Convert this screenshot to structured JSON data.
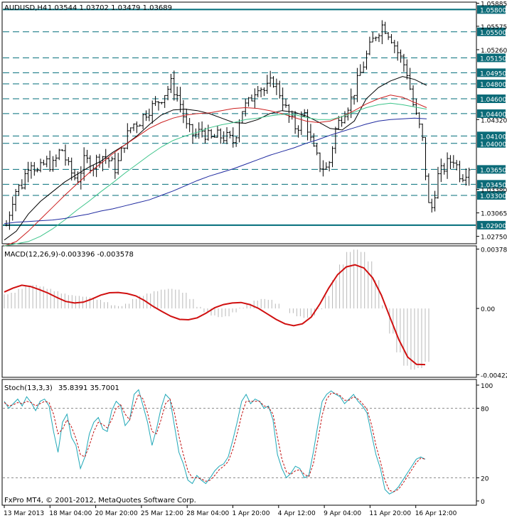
{
  "window": {
    "symbol_label": "AUDUSD,H4",
    "ohlc_label": "1.03544 1.03702 1.03479 1.03689"
  },
  "colors": {
    "price_bars": "#000000",
    "level_line": "#006d7a",
    "price_tag_bg": "#0b6b78",
    "ma_fast": "#000000",
    "ma_mid": "#3cc48a",
    "ma_slow": "#cc1f1f",
    "ma_long": "#1f2aa0",
    "macd_hist": "#b8b8b8",
    "macd_signal": "#d01010",
    "stoch_main": "#20a8b8",
    "stoch_signal": "#c01010"
  },
  "footer": {
    "copyright": "FxPro MT4, © 2001-2012, MetaQuotes Software Corp."
  },
  "chart_data": [
    {
      "type": "line",
      "title": "AUDUSD,H4",
      "subtitle": "1.03544 1.03702 1.03479 1.03689",
      "chart_kind": "ohlc-bars",
      "ylim": [
        1.0266,
        1.0589
      ],
      "y_ticks": [
        "1.05885",
        "1.05575",
        "1.05260",
        "1.04320",
        "1.03380",
        "1.03065",
        "1.02750"
      ],
      "x_ticks": [
        "13 Mar 2013",
        "18 Mar 04:00",
        "20 Mar 20:00",
        "25 Mar 12:00",
        "28 Mar 04:00",
        "1 Apr 20:00",
        "4 Apr 12:00",
        "9 Apr 04:00",
        "11 Apr 20:00",
        "16 Apr 12:00"
      ],
      "horizontal_levels": [
        {
          "value": 1.058,
          "label": "1.05800",
          "solid": true
        },
        {
          "value": 1.055,
          "label": "1.05500"
        },
        {
          "value": 1.0515,
          "label": "1.05150"
        },
        {
          "value": 1.0495,
          "label": "1.04950"
        },
        {
          "value": 1.048,
          "label": "1.04800"
        },
        {
          "value": 1.046,
          "label": "1.04600"
        },
        {
          "value": 1.044,
          "label": "1.04400"
        },
        {
          "value": 1.041,
          "label": "1.04100"
        },
        {
          "value": 1.04,
          "label": "1.04000"
        },
        {
          "value": 1.0365,
          "label": "1.03650"
        },
        {
          "value": 1.0345,
          "label": "1.03450"
        },
        {
          "value": 1.033,
          "label": "1.03300"
        },
        {
          "value": 1.029,
          "label": "1.02900",
          "solid": true
        }
      ],
      "price_path": [
        1.029,
        1.0335,
        1.0345,
        1.038,
        1.036,
        1.0375,
        1.037,
        1.0395,
        1.0365,
        1.035,
        1.0378,
        1.037,
        1.0385,
        1.0378,
        1.0365,
        1.04,
        1.0425,
        1.043,
        1.0445,
        1.0452,
        1.0465,
        1.048,
        1.046,
        1.042,
        1.041,
        1.0418,
        1.0405,
        1.041,
        1.0408,
        1.0402,
        1.0445,
        1.0455,
        1.048,
        1.047,
        1.0485,
        1.0465,
        1.0435,
        1.042,
        1.044,
        1.0395,
        1.037,
        1.0365,
        1.042,
        1.0442,
        1.046,
        1.049,
        1.052,
        1.0545,
        1.056,
        1.0545,
        1.052,
        1.05,
        1.0445,
        1.041,
        1.03,
        1.0355,
        1.037,
        1.038,
        1.0355,
        1.0369
      ],
      "series": [
        {
          "name": "MA",
          "values": [
            1.027,
            1.0282,
            1.0305,
            1.0322,
            1.0335,
            1.0348,
            1.0358,
            1.0368,
            1.0376,
            1.0388,
            1.0398,
            1.041,
            1.0425,
            1.0438,
            1.0445,
            1.0446,
            1.0444,
            1.044,
            1.0434,
            1.0428,
            1.0427,
            1.0432,
            1.044,
            1.0444,
            1.0442,
            1.0437,
            1.0429,
            1.042,
            1.0418,
            1.043,
            1.046,
            1.0475,
            1.0484,
            1.049,
            1.0486,
            1.0478
          ]
        },
        {
          "name": "MA",
          "values": [
            1.0262,
            1.0268,
            1.0282,
            1.0298,
            1.0314,
            1.033,
            1.0345,
            1.036,
            1.0373,
            1.0386,
            1.0398,
            1.0409,
            1.042,
            1.0428,
            1.0434,
            1.0438,
            1.044,
            1.0441,
            1.0444,
            1.0447,
            1.0448,
            1.0447,
            1.0444,
            1.044,
            1.0435,
            1.043,
            1.0428,
            1.043,
            1.0436,
            1.0444,
            1.0453,
            1.046,
            1.0465,
            1.0462,
            1.0455,
            1.0448
          ]
        },
        {
          "name": "MA",
          "values": [
            1.0262,
            1.0265,
            1.0268,
            1.0275,
            1.0285,
            1.0297,
            1.031,
            1.0322,
            1.0335,
            1.0347,
            1.036,
            1.0372,
            1.0384,
            1.0395,
            1.0404,
            1.041,
            1.0415,
            1.0421,
            1.0425,
            1.0428,
            1.0432,
            1.0434,
            1.0437,
            1.0439,
            1.0439,
            1.0435,
            1.0432,
            1.0432,
            1.0436,
            1.0442,
            1.0448,
            1.0452,
            1.0454,
            1.0452,
            1.0449,
            1.0446
          ]
        },
        {
          "name": "MA",
          "values": [
            1.0292,
            1.0294,
            1.0295,
            1.0296,
            1.0297,
            1.0299,
            1.0302,
            1.0305,
            1.0309,
            1.0312,
            1.0316,
            1.032,
            1.0324,
            1.033,
            1.0336,
            1.0343,
            1.035,
            1.0356,
            1.0361,
            1.0366,
            1.0372,
            1.0378,
            1.0384,
            1.0389,
            1.0394,
            1.04,
            1.0405,
            1.0411,
            1.0416,
            1.0421,
            1.0426,
            1.043,
            1.0432,
            1.0433,
            1.0434,
            1.0433
          ]
        }
      ]
    },
    {
      "type": "bar",
      "title": "MACD(12,26,9)",
      "subtitle": "-0.003396 -0.003578",
      "ylim": [
        -0.0043,
        0.0039
      ],
      "y_ticks": [
        "0.003784",
        "0.00",
        "-0.004224"
      ],
      "series": [
        {
          "name": "MACD histogram",
          "values": [
            0.0009,
            0.001,
            0.00125,
            0.00145,
            0.0015,
            0.0014,
            0.00125,
            0.0011,
            0.00095,
            0.00085,
            0.0008,
            0.00075,
            0.0007,
            0.00055,
            0.0004,
            0.0002,
            0.00015,
            0.0003,
            0.0006,
            0.0008,
            0.00095,
            0.0011,
            0.0012,
            0.00125,
            0.0012,
            0.001,
            0.0006,
            0.0001,
            -0.00025,
            -0.00045,
            -0.00055,
            -0.0005,
            -0.00025,
            5e-05,
            0.0003,
            0.0005,
            0.0006,
            0.00055,
            0.0003,
            0.0,
            -0.0003,
            -0.0005,
            -0.0006,
            -0.00045,
            -5e-05,
            0.0008,
            0.0018,
            0.0028,
            0.0036,
            0.00375,
            0.0036,
            0.003,
            0.0018,
            0.0002,
            -0.0016,
            -0.0028,
            -0.00365,
            -0.0039,
            -0.0038,
            -0.0034
          ]
        },
        {
          "name": "Signal",
          "values": [
            0.00105,
            0.0013,
            0.00148,
            0.0014,
            0.0012,
            0.00098,
            0.0007,
            0.00045,
            0.00035,
            0.0004,
            0.0006,
            0.00085,
            0.001,
            0.00102,
            0.00095,
            0.0008,
            0.0005,
            0.00012,
            -0.0002,
            -0.0005,
            -0.0007,
            -0.00072,
            -0.0006,
            -0.0003,
            5e-05,
            0.00025,
            0.00035,
            0.00038,
            0.00025,
            0.0,
            -0.00035,
            -0.0007,
            -0.00098,
            -0.0011,
            -0.00098,
            -0.00055,
            0.0003,
            0.0013,
            0.00215,
            0.00265,
            0.00278,
            0.00258,
            0.00195,
            0.00085,
            -0.0006,
            -0.002,
            -0.0031,
            -0.00356,
            -0.00358
          ]
        }
      ]
    },
    {
      "type": "line",
      "title": "Stoch(13,3,3)",
      "subtitle": "35.8391 35.7001",
      "ylim": [
        0,
        100
      ],
      "y_ticks": [
        "100",
        "80",
        "20",
        "0"
      ],
      "series": [
        {
          "name": "Stoch main",
          "values": [
            86,
            80,
            84,
            88,
            82,
            90,
            85,
            78,
            86,
            88,
            82,
            60,
            42,
            68,
            75,
            55,
            48,
            28,
            38,
            58,
            68,
            72,
            62,
            60,
            78,
            86,
            82,
            65,
            70,
            92,
            96,
            82,
            68,
            48,
            62,
            80,
            92,
            88,
            65,
            42,
            32,
            18,
            15,
            22,
            18,
            15,
            20,
            26,
            30,
            32,
            38,
            52,
            68,
            86,
            92,
            84,
            88,
            86,
            80,
            82,
            70,
            40,
            28,
            20,
            24,
            30,
            28,
            20,
            22,
            42,
            65,
            86,
            92,
            95,
            92,
            90,
            84,
            88,
            92,
            86,
            82,
            76,
            58,
            40,
            28,
            10,
            6,
            8,
            12,
            18,
            24,
            30,
            36,
            38,
            36
          ]
        },
        {
          "name": "Stoch signal",
          "values": [
            85,
            82,
            83,
            85,
            84,
            86,
            85,
            82,
            84,
            86,
            85,
            75,
            58,
            62,
            70,
            64,
            54,
            40,
            38,
            48,
            60,
            68,
            66,
            63,
            70,
            80,
            83,
            75,
            70,
            82,
            92,
            88,
            76,
            60,
            58,
            70,
            84,
            88,
            76,
            56,
            40,
            26,
            20,
            20,
            19,
            17,
            18,
            22,
            27,
            30,
            34,
            44,
            58,
            74,
            86,
            86,
            86,
            86,
            82,
            81,
            75,
            55,
            36,
            25,
            23,
            26,
            27,
            23,
            21,
            32,
            52,
            74,
            88,
            93,
            93,
            91,
            87,
            87,
            90,
            88,
            84,
            79,
            66,
            48,
            34,
            18,
            9,
            8,
            10,
            15,
            21,
            27,
            33,
            37,
            36
          ]
        }
      ]
    }
  ]
}
